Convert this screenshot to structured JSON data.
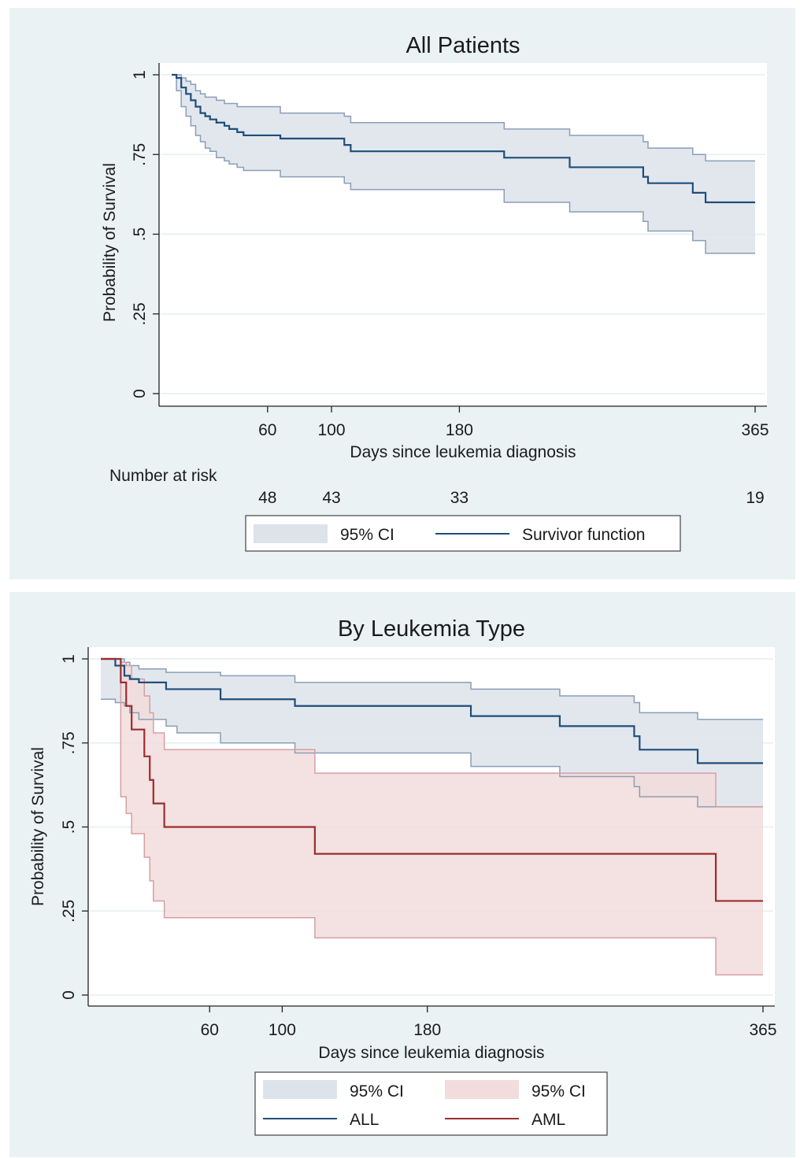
{
  "chart_data": [
    {
      "type": "line",
      "title": "All Patients",
      "xlabel": "Days since leukemia diagnosis",
      "ylabel": "Probability of Survival",
      "xlim": [
        0,
        365
      ],
      "ylim": [
        0,
        1
      ],
      "xticks": [
        60,
        100,
        180,
        365
      ],
      "xtick_labels": [
        "60",
        "100",
        "180",
        "365"
      ],
      "yticks": [
        0,
        0.25,
        0.5,
        0.75,
        1
      ],
      "ytick_labels": [
        "0",
        ".25",
        ".5",
        ".75",
        "1"
      ],
      "grid": true,
      "risk_table": {
        "label": "Number at risk",
        "days": [
          60,
          100,
          180,
          365
        ],
        "counts": [
          "48",
          "43",
          "33",
          "19"
        ]
      },
      "legend": {
        "placement": "bottom",
        "entries": [
          {
            "label": "95% CI",
            "kind": "band",
            "color": "#dde3eb"
          },
          {
            "label": "Survivor function",
            "kind": "line",
            "color": "#1f4e79"
          }
        ]
      },
      "series": [
        {
          "kind": "survival",
          "color": "#1f4e79",
          "band_color": "#dde3eb",
          "band_edge_color": "#8a9eb5",
          "points": [
            {
              "t": 0,
              "s": 1.0,
              "lo": 1.0,
              "hi": 1.0
            },
            {
              "t": 3,
              "s": 0.99,
              "lo": 0.95,
              "hi": 1.0
            },
            {
              "t": 6,
              "s": 0.96,
              "lo": 0.9,
              "hi": 0.99
            },
            {
              "t": 9,
              "s": 0.94,
              "lo": 0.87,
              "hi": 0.98
            },
            {
              "t": 12,
              "s": 0.92,
              "lo": 0.84,
              "hi": 0.97
            },
            {
              "t": 15,
              "s": 0.9,
              "lo": 0.81,
              "hi": 0.95
            },
            {
              "t": 18,
              "s": 0.88,
              "lo": 0.79,
              "hi": 0.94
            },
            {
              "t": 21,
              "s": 0.87,
              "lo": 0.77,
              "hi": 0.93
            },
            {
              "t": 24,
              "s": 0.86,
              "lo": 0.76,
              "hi": 0.93
            },
            {
              "t": 28,
              "s": 0.85,
              "lo": 0.74,
              "hi": 0.92
            },
            {
              "t": 33,
              "s": 0.84,
              "lo": 0.73,
              "hi": 0.91
            },
            {
              "t": 36,
              "s": 0.83,
              "lo": 0.72,
              "hi": 0.91
            },
            {
              "t": 41,
              "s": 0.82,
              "lo": 0.71,
              "hi": 0.9
            },
            {
              "t": 45,
              "s": 0.81,
              "lo": 0.7,
              "hi": 0.9
            },
            {
              "t": 68,
              "s": 0.8,
              "lo": 0.68,
              "hi": 0.88
            },
            {
              "t": 108,
              "s": 0.78,
              "lo": 0.66,
              "hi": 0.87
            },
            {
              "t": 112,
              "s": 0.76,
              "lo": 0.64,
              "hi": 0.85
            },
            {
              "t": 208,
              "s": 0.74,
              "lo": 0.6,
              "hi": 0.83
            },
            {
              "t": 249,
              "s": 0.71,
              "lo": 0.57,
              "hi": 0.81
            },
            {
              "t": 295,
              "s": 0.68,
              "lo": 0.54,
              "hi": 0.79
            },
            {
              "t": 298,
              "s": 0.66,
              "lo": 0.51,
              "hi": 0.77
            },
            {
              "t": 326,
              "s": 0.63,
              "lo": 0.48,
              "hi": 0.75
            },
            {
              "t": 334,
              "s": 0.6,
              "lo": 0.44,
              "hi": 0.73
            },
            {
              "t": 365,
              "s": 0.6,
              "lo": 0.44,
              "hi": 0.73
            }
          ]
        }
      ]
    },
    {
      "type": "line",
      "title": "By Leukemia Type",
      "xlabel": "Days since leukemia diagnosis",
      "ylabel": "Probability of Survival",
      "xlim": [
        0,
        365
      ],
      "ylim": [
        0,
        1
      ],
      "xticks": [
        60,
        100,
        180,
        365
      ],
      "xtick_labels": [
        "60",
        "100",
        "180",
        "365"
      ],
      "yticks": [
        0,
        0.25,
        0.5,
        0.75,
        1
      ],
      "ytick_labels": [
        "0",
        ".25",
        ".5",
        ".75",
        "1"
      ],
      "grid": true,
      "legend": {
        "placement": "bottom",
        "entries": [
          {
            "label": "95% CI",
            "kind": "band",
            "color": "#dde3eb"
          },
          {
            "label": "95% CI",
            "kind": "band",
            "color": "#f2dcdc"
          },
          {
            "label": "ALL",
            "kind": "line",
            "color": "#1f4e79"
          },
          {
            "label": "AML",
            "kind": "line",
            "color": "#9b2d30"
          }
        ]
      },
      "series": [
        {
          "name": "ALL",
          "kind": "survival",
          "color": "#1f4e79",
          "band_color": "#dde3eb",
          "band_edge_color": "#8a9eb5",
          "points": [
            {
              "t": 0,
              "s": 1.0,
              "lo": 0.88,
              "hi": 1.0
            },
            {
              "t": 8,
              "s": 0.98,
              "lo": 0.87,
              "hi": 1.0
            },
            {
              "t": 13,
              "s": 0.95,
              "lo": 0.86,
              "hi": 0.99
            },
            {
              "t": 16,
              "s": 0.94,
              "lo": 0.84,
              "hi": 0.98
            },
            {
              "t": 21,
              "s": 0.93,
              "lo": 0.82,
              "hi": 0.97
            },
            {
              "t": 36,
              "s": 0.91,
              "lo": 0.8,
              "hi": 0.96
            },
            {
              "t": 42,
              "s": 0.91,
              "lo": 0.78,
              "hi": 0.96
            },
            {
              "t": 66,
              "s": 0.88,
              "lo": 0.75,
              "hi": 0.95
            },
            {
              "t": 107,
              "s": 0.86,
              "lo": 0.72,
              "hi": 0.93
            },
            {
              "t": 182,
              "s": 0.86,
              "lo": 0.72,
              "hi": 0.93
            },
            {
              "t": 204,
              "s": 0.83,
              "lo": 0.68,
              "hi": 0.91
            },
            {
              "t": 253,
              "s": 0.8,
              "lo": 0.65,
              "hi": 0.89
            },
            {
              "t": 294,
              "s": 0.77,
              "lo": 0.62,
              "hi": 0.87
            },
            {
              "t": 297,
              "s": 0.73,
              "lo": 0.59,
              "hi": 0.84
            },
            {
              "t": 329,
              "s": 0.69,
              "lo": 0.56,
              "hi": 0.82
            },
            {
              "t": 365,
              "s": 0.69,
              "lo": 0.56,
              "hi": 0.82
            }
          ]
        },
        {
          "name": "AML",
          "kind": "survival",
          "color": "#9b2d30",
          "band_color": "#f2dcdc",
          "band_edge_color": "#d4a0a3",
          "points": [
            {
              "t": 0,
              "s": 1.0,
              "lo": 1.0,
              "hi": 1.0
            },
            {
              "t": 11,
              "s": 0.93,
              "lo": 0.59,
              "hi": 0.99
            },
            {
              "t": 14,
              "s": 0.86,
              "lo": 0.54,
              "hi": 0.98
            },
            {
              "t": 17,
              "s": 0.79,
              "lo": 0.48,
              "hi": 0.94
            },
            {
              "t": 24,
              "s": 0.71,
              "lo": 0.41,
              "hi": 0.89
            },
            {
              "t": 27,
              "s": 0.64,
              "lo": 0.34,
              "hi": 0.84
            },
            {
              "t": 29,
              "s": 0.57,
              "lo": 0.28,
              "hi": 0.78
            },
            {
              "t": 35,
              "s": 0.5,
              "lo": 0.23,
              "hi": 0.73
            },
            {
              "t": 118,
              "s": 0.42,
              "lo": 0.17,
              "hi": 0.66
            },
            {
              "t": 339,
              "s": 0.28,
              "lo": 0.06,
              "hi": 0.56
            },
            {
              "t": 365,
              "s": 0.28,
              "lo": 0.06,
              "hi": 0.56
            }
          ]
        }
      ]
    }
  ]
}
